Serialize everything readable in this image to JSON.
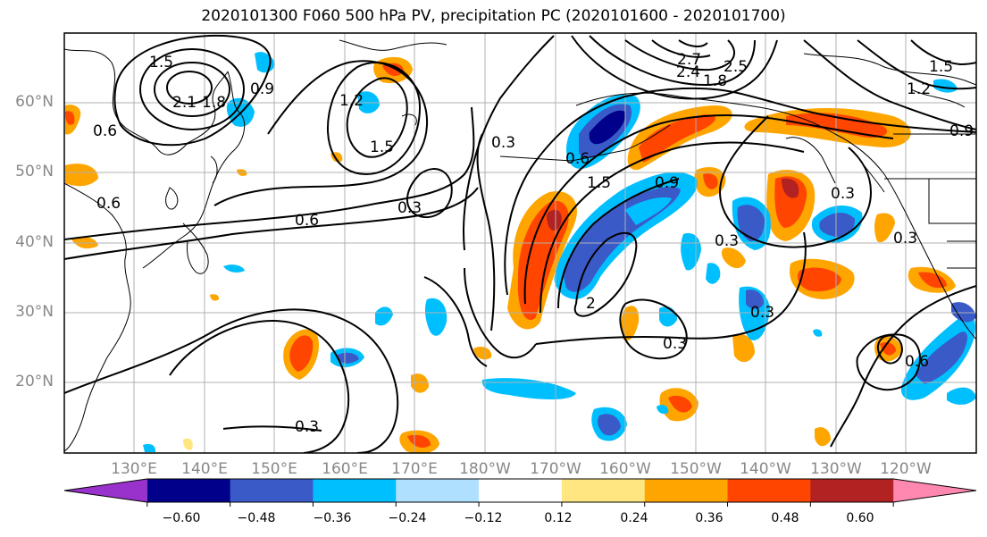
{
  "title": "2020101300 F060 500 hPa PV, precipitation PC (2020101600 - 2020101700)",
  "lat_labels": [
    "60°N",
    "50°N",
    "40°N",
    "30°N",
    "20°N"
  ],
  "lon_labels": [
    "130°E",
    "140°E",
    "150°E",
    "160°E",
    "170°E",
    "180°W",
    "170°W",
    "160°W",
    "150°W",
    "140°W",
    "130°W",
    "120°W"
  ],
  "colorbar": {
    "colors": [
      "#9932cc",
      "#00008b",
      "#3a5ac8",
      "#00bfff",
      "#b0e0ff",
      "#ffffff",
      "#ffe680",
      "#ffa500",
      "#ff4500",
      "#b22222",
      "#ff88b0"
    ],
    "ticks": [
      "−0.60",
      "−0.48",
      "−0.36",
      "−0.24",
      "−0.12",
      "0.12",
      "0.24",
      "0.36",
      "0.48",
      "0.60"
    ]
  },
  "contour_labels": [
    "1.5",
    "2.1",
    "1.8",
    "0.9",
    "0.6",
    "1.2",
    "1.5",
    "0.3",
    "2.7",
    "2.4",
    "1.8",
    "2.5",
    "1.5",
    "1.2",
    "0.9",
    "0.6",
    "0.6",
    "0.3",
    "0.6",
    "1.5",
    "0.9",
    "0.3",
    "0.3",
    "2",
    "0.3",
    "0.3",
    "0.3",
    "0.3",
    "0.6",
    "0.3"
  ]
}
